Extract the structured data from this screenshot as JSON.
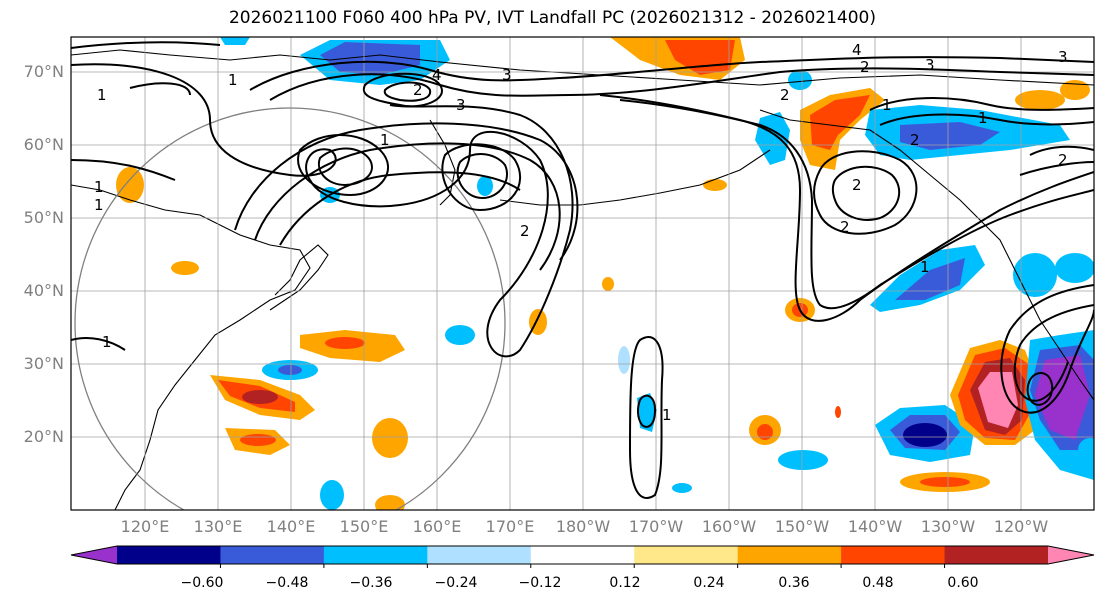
{
  "title": "2026021100 F060 400 hPa PV, IVT Landfall PC (2026021312 - 2026021400)",
  "lat_labels": [
    "70°N",
    "60°N",
    "50°N",
    "40°N",
    "30°N",
    "20°N"
  ],
  "lon_labels": [
    "120°E",
    "130°E",
    "140°E",
    "150°E",
    "160°E",
    "170°E",
    "180°W",
    "170°W",
    "160°W",
    "150°W",
    "140°W",
    "130°W",
    "120°W"
  ],
  "colorbar": {
    "tick_labels": [
      "−0.60",
      "−0.48",
      "−0.36",
      "−0.24",
      "−0.12",
      "0.12",
      "0.24",
      "0.36",
      "0.48",
      "0.60"
    ],
    "colors": [
      "#9932cc",
      "#00008b",
      "#3a5bd9",
      "#00bfff",
      "#b0e0ff",
      "#ffffff",
      "#ffe88a",
      "#ffa500",
      "#ff4500",
      "#b22222",
      "#ff85b3"
    ]
  },
  "contour_labels": [
    "1",
    "1",
    "1",
    "1",
    "1",
    "2",
    "3",
    "4",
    "3",
    "2",
    "1",
    "1",
    "4",
    "2",
    "3",
    "3",
    "2",
    "1",
    "2",
    "2",
    "2",
    "1",
    "1",
    "2"
  ]
}
